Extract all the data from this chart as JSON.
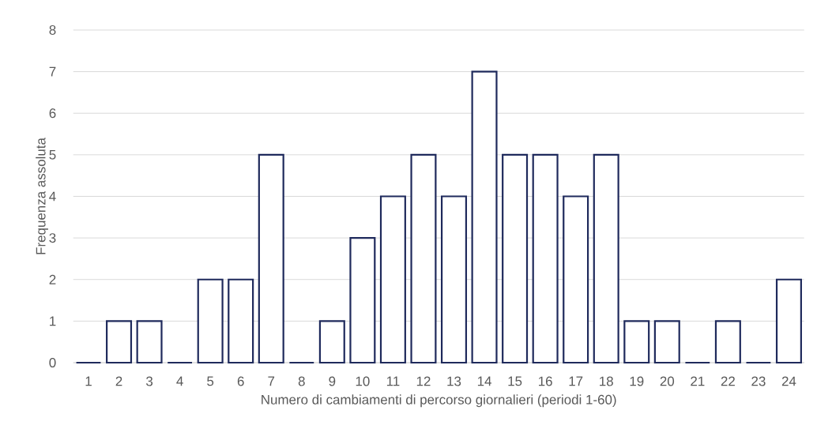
{
  "chart_data": {
    "type": "bar",
    "xlabel": "Numero di cambiamenti di percorso giornalieri (periodi 1-60)",
    "ylabel": "Frequenza assoluta",
    "categories": [
      "1",
      "2",
      "3",
      "4",
      "5",
      "6",
      "7",
      "8",
      "9",
      "10",
      "11",
      "12",
      "13",
      "14",
      "15",
      "16",
      "17",
      "18",
      "19",
      "20",
      "21",
      "22",
      "23",
      "24"
    ],
    "values": [
      0,
      1,
      1,
      0,
      2,
      2,
      5,
      0,
      1,
      3,
      4,
      5,
      4,
      7,
      5,
      5,
      4,
      5,
      1,
      1,
      0,
      1,
      0,
      2
    ],
    "color": "#1f2a5c",
    "ylim": [
      0,
      8
    ],
    "yticks": [
      0,
      1,
      2,
      3,
      4,
      5,
      6,
      7,
      8
    ],
    "grid": "y"
  }
}
